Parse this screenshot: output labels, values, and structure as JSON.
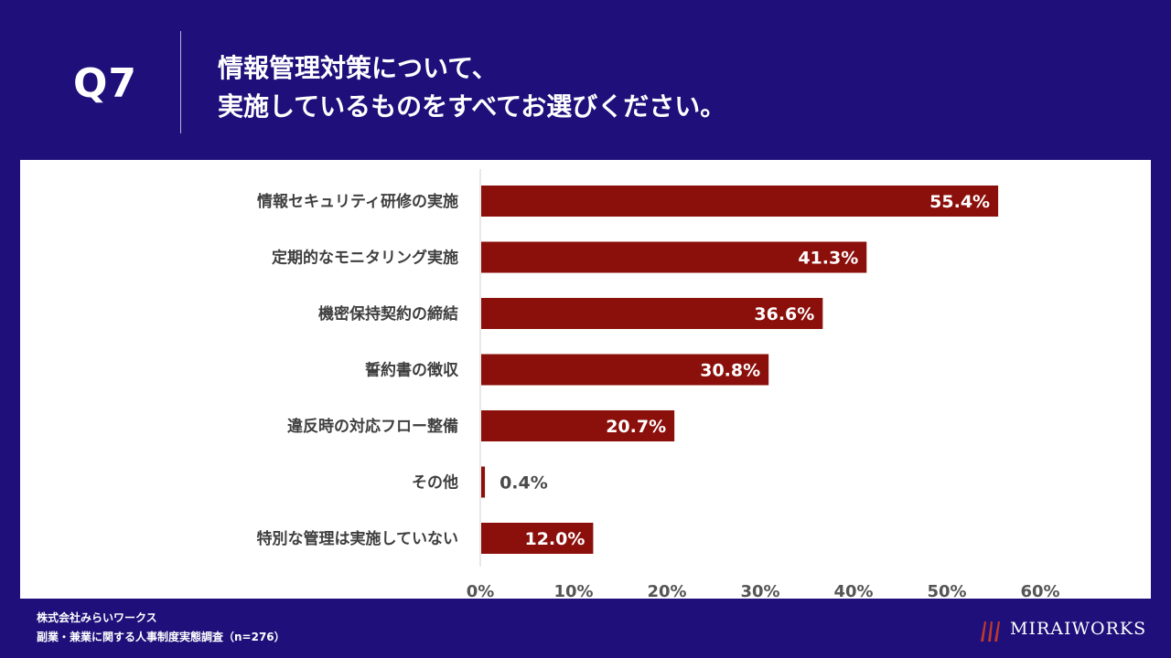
{
  "header": {
    "question_number": "Q7",
    "question_line1": "情報管理対策について、",
    "question_line2": "実施しているものをすべてお選びください。"
  },
  "chart_data": {
    "type": "bar",
    "orientation": "horizontal",
    "title": "情報管理対策について、実施しているものをすべてお選びください。",
    "categories": [
      "情報セキュリティ研修の実施",
      "定期的なモニタリング実施",
      "機密保持契約の締結",
      "誓約書の徴収",
      "違反時の対応フロー整備",
      "その他",
      "特別な管理は実施していない"
    ],
    "values": [
      55.4,
      41.3,
      36.6,
      30.8,
      20.7,
      0.4,
      12.0
    ],
    "value_labels": [
      "55.4%",
      "41.3%",
      "36.6%",
      "30.8%",
      "20.7%",
      "0.4%",
      "12.0%"
    ],
    "xlim": [
      0,
      60
    ],
    "xticks": [
      0,
      10,
      20,
      30,
      40,
      50,
      60
    ],
    "xtick_labels": [
      "0%",
      "10%",
      "20%",
      "30%",
      "40%",
      "50%",
      "60%"
    ],
    "xlabel": "",
    "ylabel": "",
    "bar_color": "#8b0f0a",
    "grid": false,
    "legend": "none"
  },
  "footer": {
    "company": "株式会社みらいワークス",
    "survey": "副業・兼業に関する人事制度実態調査（n=276）"
  },
  "brand": {
    "logo_text": "MIRAIWORKS",
    "logo_mark": "mirai-works-logo-mark",
    "background_color": "#1e0f7a",
    "accent_color": "#8b0f0a"
  }
}
